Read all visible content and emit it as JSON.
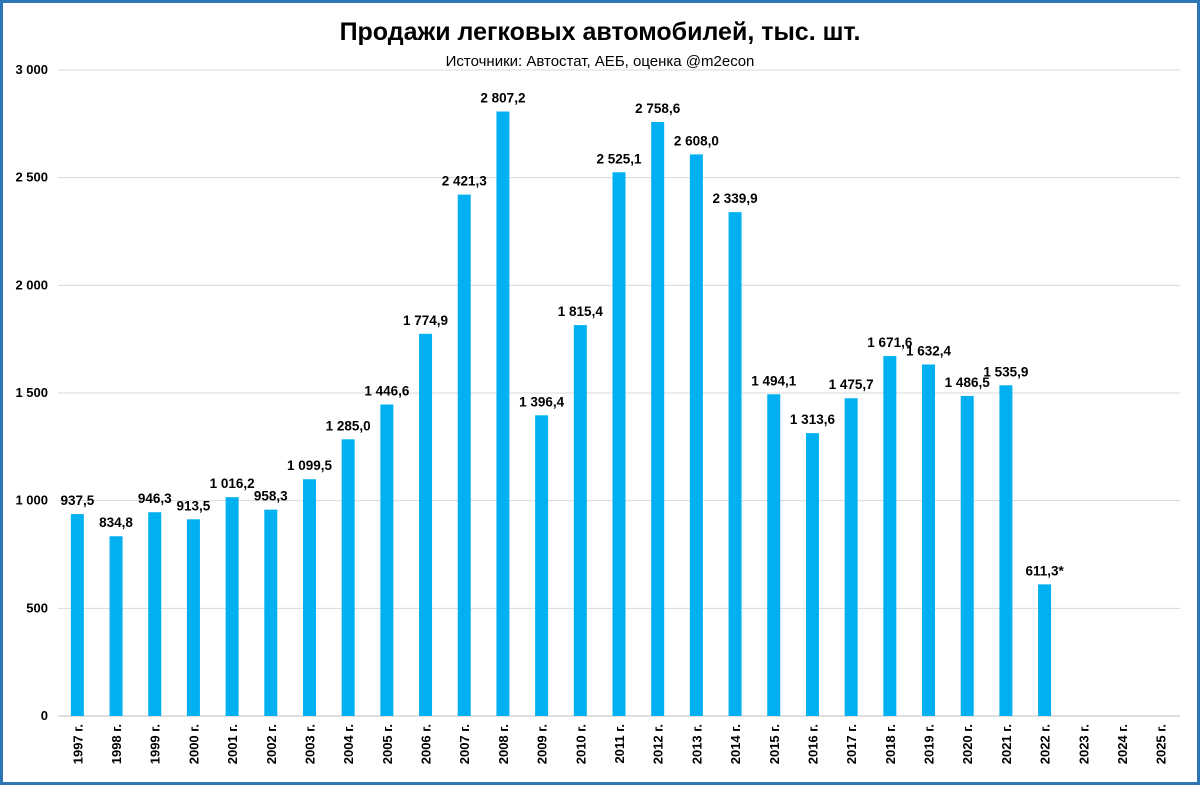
{
  "chart_data": {
    "type": "bar",
    "title": "Продажи легковых автомобилей, тыс. шт.",
    "subtitle": "Источники: Автостат, АЕБ, оценка @m2econ",
    "xlabel": "",
    "ylabel": "",
    "ylim": [
      0,
      3000
    ],
    "yticks": [
      0,
      500,
      1000,
      1500,
      2000,
      2500,
      3000
    ],
    "ytick_labels": [
      "0",
      "500",
      "1 000",
      "1 500",
      "2 000",
      "2 500",
      "3 000"
    ],
    "grid": true,
    "legend": "none",
    "categories": [
      "1997 г.",
      "1998 г.",
      "1999 г.",
      "2000 г.",
      "2001 г.",
      "2002 г.",
      "2003 г.",
      "2004 г.",
      "2005 г.",
      "2006 г.",
      "2007 г.",
      "2008 г.",
      "2009 г.",
      "2010 г.",
      "2011 г.",
      "2012 г.",
      "2013 г.",
      "2014 г.",
      "2015 г.",
      "2016 г.",
      "2017 г.",
      "2018 г.",
      "2019 г.",
      "2020 г.",
      "2021 г.",
      "2022 г.",
      "2023 г.",
      "2024 г.",
      "2025 г."
    ],
    "values": [
      937.5,
      834.8,
      946.3,
      913.5,
      1016.2,
      958.3,
      1099.5,
      1285.0,
      1446.6,
      1774.9,
      2421.3,
      2807.2,
      1396.4,
      1815.4,
      2525.1,
      2758.6,
      2608.0,
      2339.9,
      1494.1,
      1313.6,
      1475.7,
      1671.6,
      1632.4,
      1486.5,
      1535.9,
      611.3,
      null,
      null,
      null
    ],
    "data_labels": [
      "937,5",
      "834,8",
      "946,3",
      "913,5",
      "1 016,2",
      "958,3",
      "1 099,5",
      "1 285,0",
      "1 446,6",
      "1 774,9",
      "2 421,3",
      "2 807,2",
      "1 396,4",
      "1 815,4",
      "2 525,1",
      "2 758,6",
      "2 608,0",
      "2 339,9",
      "1 494,1",
      "1 313,6",
      "1 475,7",
      "1 671,6",
      "1 632,4",
      "1 486,5",
      "1 535,9",
      "611,3*",
      "",
      "",
      ""
    ],
    "colors": {
      "bar": "#00B0F0",
      "border": "#2E75B6",
      "grid": "#D9D9D9"
    }
  }
}
